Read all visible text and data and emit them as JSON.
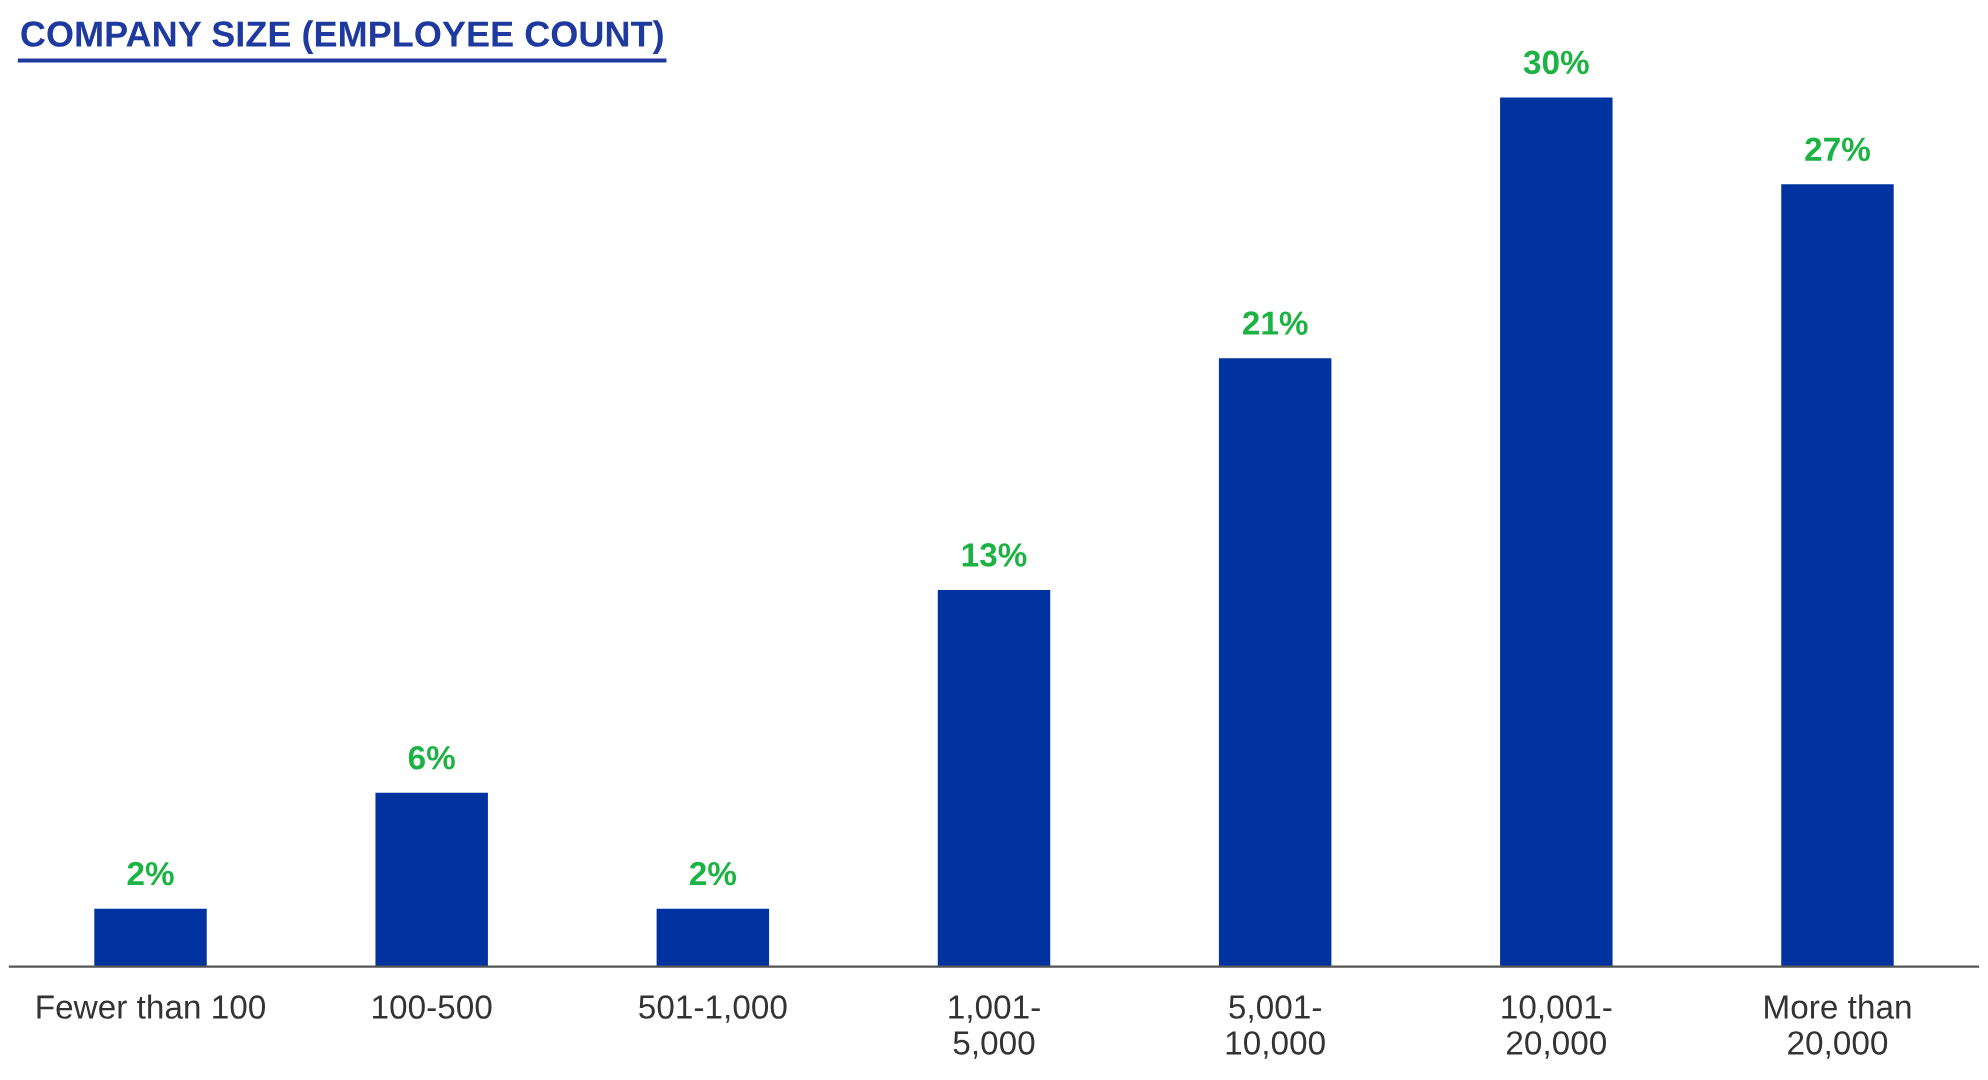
{
  "chart_data": {
    "type": "bar",
    "title": "COMPANY SIZE (EMPLOYEE COUNT)",
    "categories": [
      "Fewer than 100",
      "100-500",
      "501-1,000",
      "1,001-\n5,000",
      "5,001-\n10,000",
      "10,001-\n20,000",
      "More than\n20,000"
    ],
    "values": [
      2,
      6,
      2,
      13,
      21,
      30,
      27
    ],
    "value_labels": [
      "2%",
      "6%",
      "2%",
      "13%",
      "21%",
      "30%",
      "27%"
    ],
    "color": "#0033a0",
    "grid": false,
    "legend": false
  }
}
